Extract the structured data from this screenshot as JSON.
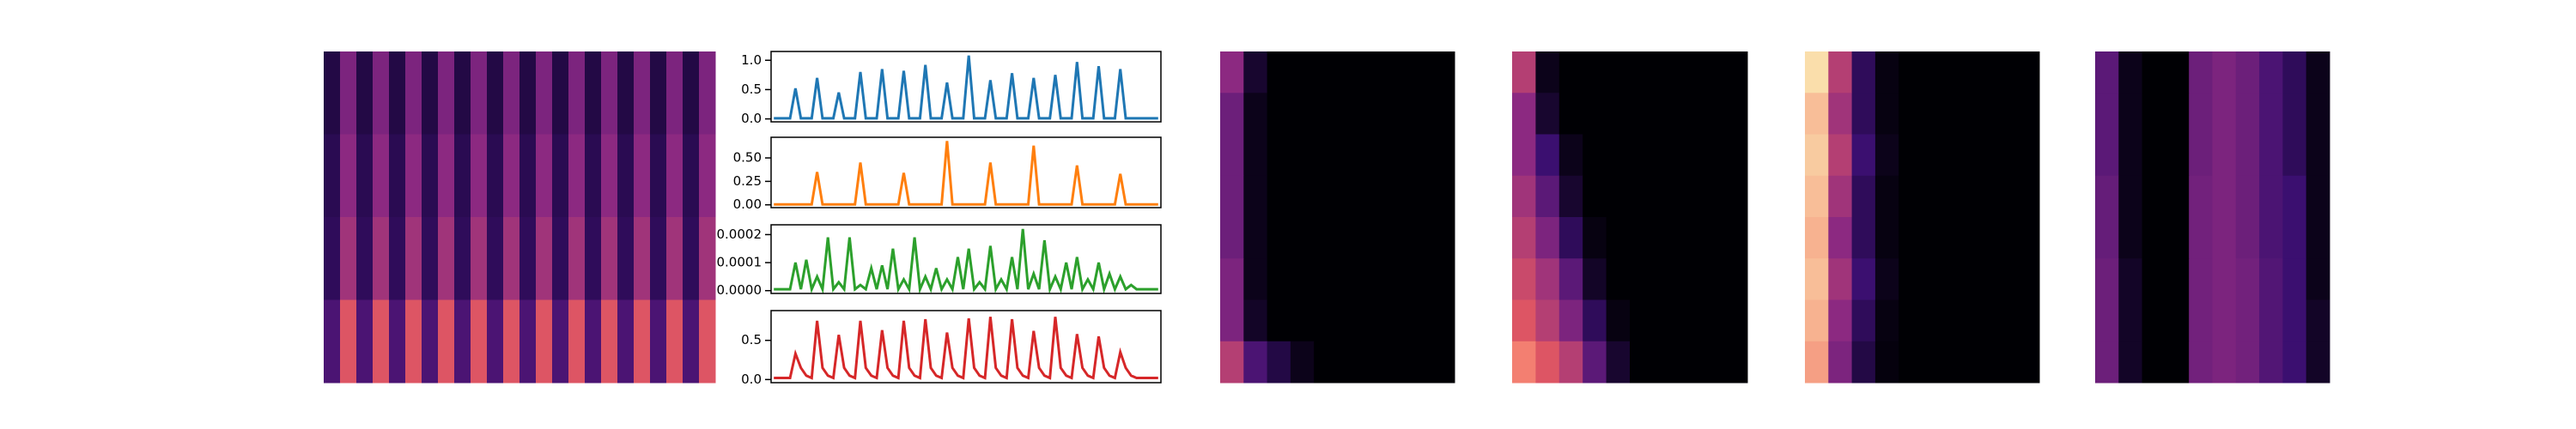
{
  "chart_data": [
    {
      "type": "heatmap",
      "colormap": "magma",
      "values": [
        [
          0.15,
          0.45,
          0.15,
          0.45,
          0.15,
          0.45,
          0.15,
          0.45,
          0.15,
          0.45,
          0.15,
          0.45,
          0.15,
          0.45,
          0.15,
          0.45,
          0.15,
          0.45,
          0.15,
          0.45,
          0.15,
          0.45,
          0.15,
          0.45
        ],
        [
          0.18,
          0.5,
          0.18,
          0.5,
          0.18,
          0.5,
          0.18,
          0.5,
          0.18,
          0.5,
          0.18,
          0.5,
          0.18,
          0.5,
          0.18,
          0.5,
          0.18,
          0.5,
          0.18,
          0.5,
          0.18,
          0.5,
          0.18,
          0.5
        ],
        [
          0.2,
          0.55,
          0.2,
          0.55,
          0.2,
          0.55,
          0.2,
          0.55,
          0.2,
          0.55,
          0.2,
          0.55,
          0.2,
          0.55,
          0.2,
          0.55,
          0.2,
          0.55,
          0.2,
          0.55,
          0.2,
          0.55,
          0.2,
          0.55
        ],
        [
          0.3,
          0.7,
          0.3,
          0.7,
          0.3,
          0.7,
          0.3,
          0.7,
          0.3,
          0.7,
          0.3,
          0.7,
          0.3,
          0.7,
          0.3,
          0.7,
          0.3,
          0.7,
          0.3,
          0.7,
          0.3,
          0.7,
          0.3,
          0.7
        ]
      ]
    },
    {
      "type": "line",
      "color": "#1f77b4",
      "ylim": [
        -0.05,
        1.15
      ],
      "yticks": [
        {
          "value": 0,
          "label": "0.0"
        },
        {
          "value": 0.5,
          "label": "0.5"
        },
        {
          "value": 1,
          "label": "1.0"
        }
      ],
      "values": [
        0.01,
        0.01,
        0.01,
        0.01,
        0.52,
        0.01,
        0.01,
        0.01,
        0.7,
        0.01,
        0.01,
        0.01,
        0.45,
        0.01,
        0.01,
        0.01,
        0.8,
        0.01,
        0.01,
        0.01,
        0.85,
        0.01,
        0.01,
        0.01,
        0.82,
        0.01,
        0.01,
        0.01,
        0.92,
        0.01,
        0.01,
        0.01,
        0.62,
        0.01,
        0.01,
        0.01,
        1.08,
        0.01,
        0.01,
        0.01,
        0.66,
        0.01,
        0.01,
        0.01,
        0.78,
        0.01,
        0.01,
        0.01,
        0.7,
        0.01,
        0.01,
        0.01,
        0.75,
        0.01,
        0.01,
        0.01,
        0.97,
        0.01,
        0.01,
        0.01,
        0.9,
        0.01,
        0.01,
        0.01,
        0.85,
        0.01,
        0.01,
        0.01,
        0.01,
        0.01,
        0.01,
        0.01
      ]
    },
    {
      "type": "line",
      "color": "#ff7f0e",
      "ylim": [
        -0.03,
        0.72
      ],
      "yticks": [
        {
          "value": 0,
          "label": "0.00"
        },
        {
          "value": 0.25,
          "label": "0.25"
        },
        {
          "value": 0.5,
          "label": "0.50"
        }
      ],
      "values": [
        0.005,
        0.005,
        0.005,
        0.005,
        0.005,
        0.005,
        0.005,
        0.005,
        0.35,
        0.005,
        0.005,
        0.005,
        0.005,
        0.005,
        0.005,
        0.005,
        0.45,
        0.005,
        0.005,
        0.005,
        0.005,
        0.005,
        0.005,
        0.005,
        0.34,
        0.005,
        0.005,
        0.005,
        0.005,
        0.005,
        0.005,
        0.005,
        0.68,
        0.005,
        0.005,
        0.005,
        0.005,
        0.005,
        0.005,
        0.005,
        0.45,
        0.005,
        0.005,
        0.005,
        0.005,
        0.005,
        0.005,
        0.005,
        0.63,
        0.005,
        0.005,
        0.005,
        0.005,
        0.005,
        0.005,
        0.005,
        0.42,
        0.005,
        0.005,
        0.005,
        0.005,
        0.005,
        0.005,
        0.005,
        0.33,
        0.005,
        0.005,
        0.005,
        0.005,
        0.005,
        0.005,
        0.005
      ]
    },
    {
      "type": "line",
      "color": "#2ca02c",
      "ylim": [
        -1e-05,
        0.000235
      ],
      "yticks": [
        {
          "value": 0,
          "label": "0.0000"
        },
        {
          "value": 0.0001,
          "label": "0.0001"
        },
        {
          "value": 0.0002,
          "label": "0.0002"
        }
      ],
      "values": [
        5e-06,
        5e-06,
        5e-06,
        5e-06,
        0.0001,
        5e-06,
        0.00011,
        5e-06,
        5e-05,
        5e-06,
        0.00019,
        5e-06,
        3e-05,
        5e-06,
        0.00019,
        5e-06,
        2e-05,
        5e-06,
        8e-05,
        5e-06,
        9e-05,
        5e-06,
        0.00015,
        5e-06,
        4e-05,
        5e-06,
        0.00019,
        5e-06,
        5e-05,
        5e-06,
        8e-05,
        5e-06,
        4e-05,
        5e-06,
        0.00012,
        5e-06,
        0.00015,
        5e-06,
        3e-05,
        5e-06,
        0.00016,
        5e-06,
        4e-05,
        5e-06,
        0.00012,
        5e-06,
        0.00022,
        5e-06,
        6e-05,
        5e-06,
        0.00018,
        5e-06,
        5e-05,
        5e-06,
        0.0001,
        5e-06,
        0.00012,
        5e-06,
        4e-05,
        5e-06,
        0.0001,
        5e-06,
        6e-05,
        5e-06,
        5e-05,
        5e-06,
        2e-05,
        5e-06,
        5e-06,
        5e-06,
        5e-06,
        5e-06
      ]
    },
    {
      "type": "line",
      "color": "#d62728",
      "ylim": [
        -0.04,
        0.88
      ],
      "yticks": [
        {
          "value": 0,
          "label": "0.0"
        },
        {
          "value": 0.5,
          "label": "0.5"
        }
      ],
      "values": [
        0.02,
        0.02,
        0.02,
        0.02,
        0.33,
        0.15,
        0.05,
        0.02,
        0.75,
        0.15,
        0.05,
        0.02,
        0.57,
        0.15,
        0.05,
        0.02,
        0.75,
        0.15,
        0.05,
        0.02,
        0.63,
        0.15,
        0.05,
        0.02,
        0.75,
        0.15,
        0.05,
        0.02,
        0.77,
        0.15,
        0.05,
        0.02,
        0.6,
        0.15,
        0.05,
        0.02,
        0.78,
        0.15,
        0.05,
        0.02,
        0.8,
        0.15,
        0.05,
        0.02,
        0.77,
        0.15,
        0.05,
        0.02,
        0.62,
        0.15,
        0.05,
        0.02,
        0.8,
        0.15,
        0.05,
        0.02,
        0.58,
        0.15,
        0.05,
        0.02,
        0.55,
        0.15,
        0.05,
        0.02,
        0.35,
        0.15,
        0.05,
        0.02,
        0.02,
        0.02,
        0.02,
        0.02
      ]
    },
    {
      "type": "heatmap",
      "colormap": "magma",
      "values": [
        [
          0.5,
          0.1,
          0,
          0,
          0,
          0,
          0,
          0,
          0,
          0
        ],
        [
          0.4,
          0.05,
          0,
          0,
          0,
          0,
          0,
          0,
          0,
          0
        ],
        [
          0.4,
          0.05,
          0,
          0,
          0,
          0,
          0,
          0,
          0,
          0
        ],
        [
          0.4,
          0.05,
          0,
          0,
          0,
          0,
          0,
          0,
          0,
          0
        ],
        [
          0.4,
          0.05,
          0,
          0,
          0,
          0,
          0,
          0,
          0,
          0
        ],
        [
          0.45,
          0.05,
          0,
          0,
          0,
          0,
          0,
          0,
          0,
          0
        ],
        [
          0.45,
          0.08,
          0,
          0,
          0,
          0,
          0,
          0,
          0,
          0
        ],
        [
          0.6,
          0.3,
          0.15,
          0.05,
          0,
          0,
          0,
          0,
          0,
          0
        ]
      ]
    },
    {
      "type": "heatmap",
      "colormap": "magma",
      "values": [
        [
          0.6,
          0.05,
          0,
          0,
          0,
          0,
          0,
          0,
          0,
          0
        ],
        [
          0.5,
          0.1,
          0,
          0,
          0,
          0,
          0,
          0,
          0,
          0
        ],
        [
          0.5,
          0.25,
          0.05,
          0,
          0,
          0,
          0,
          0,
          0,
          0
        ],
        [
          0.55,
          0.35,
          0.1,
          0,
          0,
          0,
          0,
          0,
          0,
          0
        ],
        [
          0.6,
          0.45,
          0.2,
          0.03,
          0,
          0,
          0,
          0,
          0,
          0
        ],
        [
          0.65,
          0.55,
          0.35,
          0.08,
          0,
          0,
          0,
          0,
          0,
          0
        ],
        [
          0.7,
          0.6,
          0.45,
          0.2,
          0.03,
          0,
          0,
          0,
          0,
          0
        ],
        [
          0.8,
          0.7,
          0.6,
          0.35,
          0.1,
          0,
          0,
          0,
          0,
          0
        ]
      ]
    },
    {
      "type": "heatmap",
      "colormap": "magma",
      "values": [
        [
          0.95,
          0.6,
          0.2,
          0.03,
          0,
          0,
          0,
          0,
          0,
          0
        ],
        [
          0.9,
          0.55,
          0.2,
          0.03,
          0,
          0,
          0,
          0,
          0,
          0
        ],
        [
          0.92,
          0.6,
          0.25,
          0.05,
          0,
          0,
          0,
          0,
          0,
          0
        ],
        [
          0.9,
          0.55,
          0.2,
          0.03,
          0,
          0,
          0,
          0,
          0,
          0
        ],
        [
          0.88,
          0.5,
          0.2,
          0.03,
          0,
          0,
          0,
          0,
          0,
          0
        ],
        [
          0.9,
          0.55,
          0.25,
          0.05,
          0,
          0,
          0,
          0,
          0,
          0
        ],
        [
          0.88,
          0.5,
          0.2,
          0.03,
          0,
          0,
          0,
          0,
          0,
          0
        ],
        [
          0.85,
          0.45,
          0.15,
          0.02,
          0,
          0,
          0,
          0,
          0,
          0
        ]
      ]
    },
    {
      "type": "heatmap",
      "colormap": "magma",
      "values": [
        [
          0.35,
          0.05,
          0,
          0,
          0.4,
          0.45,
          0.4,
          0.3,
          0.2,
          0.05
        ],
        [
          0.35,
          0.05,
          0,
          0,
          0.4,
          0.45,
          0.4,
          0.3,
          0.2,
          0.05
        ],
        [
          0.35,
          0.05,
          0,
          0,
          0.4,
          0.45,
          0.4,
          0.3,
          0.2,
          0.05
        ],
        [
          0.38,
          0.05,
          0,
          0,
          0.42,
          0.45,
          0.4,
          0.3,
          0.25,
          0.05
        ],
        [
          0.38,
          0.05,
          0,
          0,
          0.42,
          0.45,
          0.4,
          0.3,
          0.25,
          0.05
        ],
        [
          0.4,
          0.08,
          0,
          0,
          0.42,
          0.45,
          0.42,
          0.32,
          0.25,
          0.05
        ],
        [
          0.4,
          0.08,
          0,
          0,
          0.42,
          0.45,
          0.42,
          0.32,
          0.25,
          0.08
        ],
        [
          0.4,
          0.08,
          0,
          0,
          0.42,
          0.45,
          0.42,
          0.32,
          0.25,
          0.08
        ]
      ]
    }
  ]
}
